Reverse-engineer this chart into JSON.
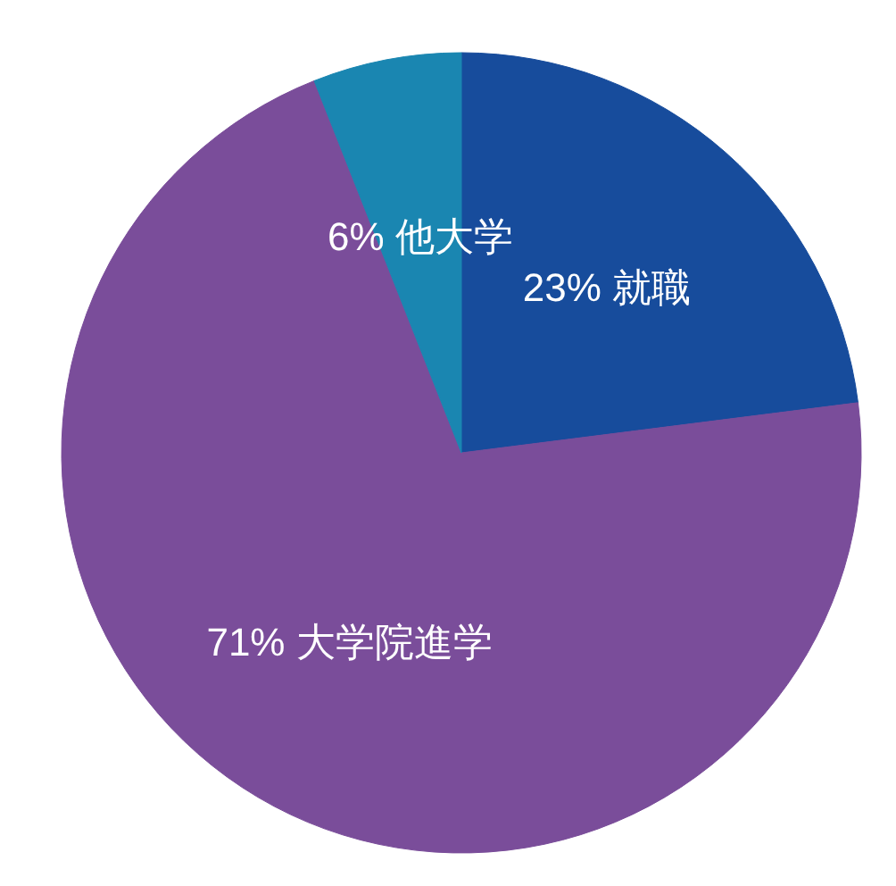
{
  "chart_data": {
    "type": "pie",
    "categories": [
      "就職",
      "大学院進学",
      "他大学"
    ],
    "values": [
      23,
      71,
      6
    ],
    "value_labels": [
      "23%",
      "71%",
      "6%"
    ],
    "colors": [
      "#174c9c",
      "#7a4d9a",
      "#1a86b1"
    ]
  }
}
